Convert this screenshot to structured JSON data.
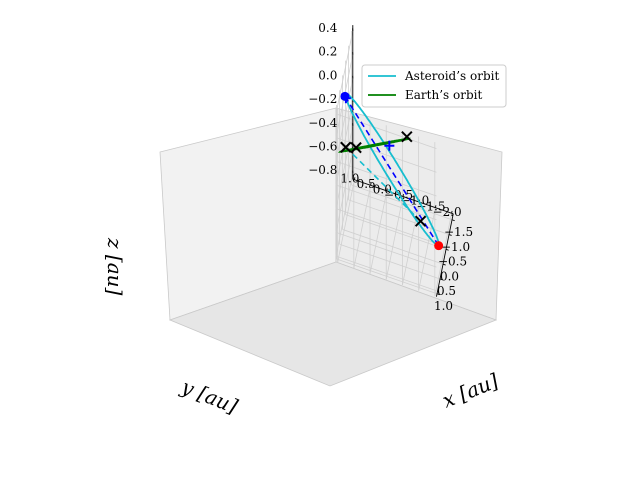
{
  "chart_data": {
    "type": "line",
    "projection": "3d",
    "title": "",
    "xlabel": "x [au]",
    "ylabel": "y [au]",
    "zlabel": "z [au]",
    "xlim": [
      -1.7,
      1.1
    ],
    "ylim": [
      -2.05,
      1.05
    ],
    "zlim": [
      -0.85,
      0.45
    ],
    "x_ticks": [
      "−1.5",
      "−1.0",
      "−0.5",
      "0.0",
      "0.5",
      "1.0"
    ],
    "y_ticks": [
      "1.0",
      "0.5",
      "0.0",
      "−0.5",
      "−1.0",
      "−1.5",
      "−2.0"
    ],
    "z_ticks": [
      "0.4",
      "0.2",
      "0.0",
      "−0.2",
      "−0.4",
      "−0.6",
      "−0.8"
    ],
    "x_tick_values": [
      -1.5,
      -1.0,
      -0.5,
      0.0,
      0.5,
      1.0
    ],
    "y_tick_values": [
      1.0,
      0.5,
      0.0,
      -0.5,
      -1.0,
      -1.5,
      -2.0
    ],
    "z_tick_values": [
      0.4,
      0.2,
      0.0,
      -0.2,
      -0.4,
      -0.6,
      -0.8
    ],
    "grid": true,
    "legend_position": "top-right",
    "series": [
      {
        "name": "Asteroid’s orbit",
        "color": "#17becf",
        "kind": "ellipse",
        "semi_major_axis": 1.4,
        "eccentricity": 0.45,
        "inclination_deg": 28,
        "ascending_node_deg": 120,
        "argument_of_perihelion_deg": 300
      },
      {
        "name": "Earth’s orbit",
        "color": "#008000",
        "kind": "circle",
        "radius": 1.0
      }
    ],
    "markers": {
      "blue_dot": {
        "color": "#0000ff",
        "shape": "circle",
        "point": [
          0.15,
          0.95,
          0.32
        ]
      },
      "red_dot": {
        "color": "#ff0000",
        "shape": "circle",
        "point": [
          -0.35,
          -1.85,
          -0.8
        ]
      },
      "blue_plus": [
        {
          "color": "#0000ff",
          "shape": "plus",
          "point": [
            -0.55,
            1.05,
            0.12
          ]
        },
        {
          "color": "#0000ff",
          "shape": "plus",
          "point": [
            0.85,
            -0.55,
            0.22
          ]
        }
      ],
      "crosses": [
        {
          "color": "#000000",
          "shape": "x",
          "point": [
            0.55,
            0.85,
            0.0
          ]
        },
        {
          "color": "#000000",
          "shape": "x",
          "point": [
            0.45,
            0.55,
            0.0
          ]
        },
        {
          "color": "#000000",
          "shape": "x",
          "point": [
            -0.45,
            -0.85,
            0.0
          ]
        },
        {
          "color": "#000000",
          "shape": "x",
          "point": [
            -0.85,
            -1.2,
            -0.78
          ]
        }
      ]
    },
    "dashed_lines": [
      {
        "color": "#0000ff",
        "from": [
          0.15,
          0.95,
          0.32
        ],
        "to": [
          -0.35,
          -1.85,
          -0.8
        ]
      },
      {
        "color": "#17becf",
        "from": [
          0.55,
          0.85,
          0.0
        ],
        "to": [
          -0.85,
          -1.2,
          -0.78
        ]
      }
    ]
  }
}
